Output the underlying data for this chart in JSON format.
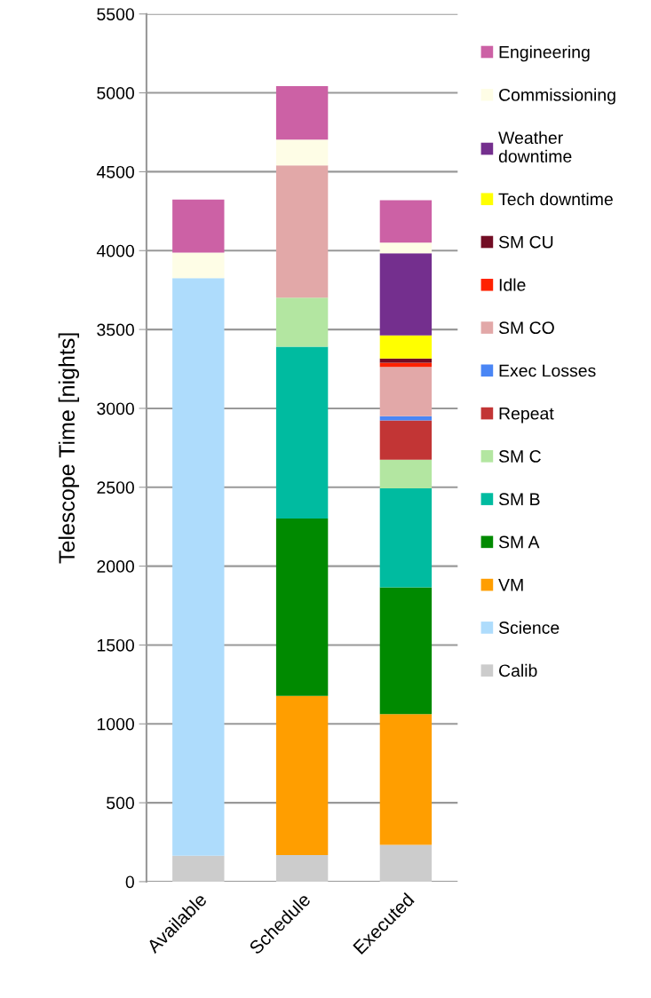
{
  "chart_data": {
    "type": "bar",
    "stacked": true,
    "ylabel": "Telescope Time [nights]",
    "categories": [
      "Available",
      "Schedule",
      "Executed"
    ],
    "ylim": [
      0,
      5500
    ],
    "yticks": [
      0,
      500,
      1000,
      1500,
      2000,
      2500,
      3000,
      3500,
      4000,
      4500,
      5000,
      5500
    ],
    "grid": "y",
    "legend": "right",
    "series": [
      {
        "name": "Calib",
        "color": "#cccccc",
        "values": [
          165,
          169,
          233
        ]
      },
      {
        "name": "Science",
        "color": "#aedcfc",
        "values": [
          3660,
          null,
          null
        ]
      },
      {
        "name": "VM",
        "color": "#ff9e00",
        "values": [
          null,
          1008,
          829
        ]
      },
      {
        "name": "SM A",
        "color": "#008a00",
        "values": [
          null,
          1124,
          803
        ]
      },
      {
        "name": "SM B",
        "color": "#00bba0",
        "values": [
          null,
          1090,
          628
        ]
      },
      {
        "name": "SM C",
        "color": "#b3e6a1",
        "values": [
          null,
          310,
          182
        ]
      },
      {
        "name": "Repeat",
        "color": "#c23535",
        "values": [
          null,
          null,
          249
        ]
      },
      {
        "name": "Exec Losses",
        "color": "#4a86f5",
        "values": [
          null,
          null,
          26
        ]
      },
      {
        "name": "SM CO",
        "color": "#e2a8a8",
        "values": [
          null,
          839,
          312
        ]
      },
      {
        "name": "Idle",
        "color": "#ff2200",
        "values": [
          null,
          null,
          28
        ]
      },
      {
        "name": "SM CU",
        "color": "#720d24",
        "values": [
          null,
          null,
          26
        ]
      },
      {
        "name": "Tech downtime",
        "color": "#ffff00",
        "values": [
          null,
          null,
          147
        ]
      },
      {
        "name": "Weather downtime",
        "color": "#742f8e",
        "values": [
          null,
          null,
          520
        ]
      },
      {
        "name": "Commissioning",
        "color": "#fefde6",
        "values": [
          163,
          163,
          67
        ]
      },
      {
        "name": "Engineering",
        "color": "#cc61a5",
        "values": [
          336,
          340,
          270
        ]
      }
    ]
  }
}
